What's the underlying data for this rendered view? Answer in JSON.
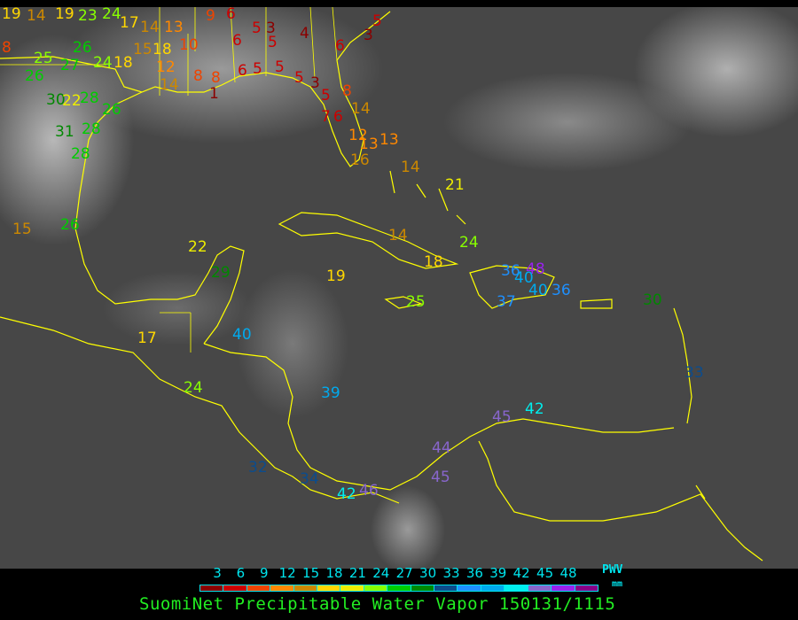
{
  "title": "SuomiNet Precipitable Water Vapor 150131/1115",
  "legend": {
    "unit_top": "PWV",
    "unit_bottom": "mm",
    "labels": [
      "3",
      "6",
      "9",
      "12",
      "15",
      "18",
      "21",
      "24",
      "27",
      "30",
      "33",
      "36",
      "39",
      "42",
      "45",
      "48"
    ],
    "colors": [
      "#8b0000",
      "#cc0000",
      "#ee4400",
      "#ff8800",
      "#cc8800",
      "#ffd700",
      "#eeee00",
      "#88ff00",
      "#00cc00",
      "#008800",
      "#0c4c8c",
      "#1e90ff",
      "#00aaee",
      "#00eeee",
      "#8866cc",
      "#9922ee",
      "#880088"
    ]
  },
  "map": {
    "coastline_color": "#ffff00",
    "background": "satellite-infrared-grayscale"
  },
  "stations": [
    "19",
    "14",
    "19",
    "23",
    "24",
    "8",
    "25",
    "27",
    "26",
    "26",
    "24",
    "18",
    "30",
    "22",
    "28",
    "31",
    "28",
    "28",
    "26",
    "17",
    "15",
    "18",
    "14",
    "13",
    "12",
    "14",
    "10",
    "9",
    "6",
    "6",
    "5",
    "3",
    "5",
    "4",
    "6",
    "5",
    "3",
    "5",
    "5",
    "6",
    "8",
    "8",
    "1",
    "5",
    "3",
    "5",
    "8",
    "14",
    "7",
    "6",
    "12",
    "13",
    "13",
    "14",
    "16",
    "21",
    "15",
    "26",
    "22",
    "29",
    "19",
    "14",
    "18",
    "24",
    "25",
    "36",
    "48",
    "40",
    "40",
    "36",
    "37",
    "30",
    "33",
    "40",
    "17",
    "24",
    "39",
    "42",
    "45",
    "44",
    "45",
    "32",
    "42",
    "46",
    "34"
  ]
}
